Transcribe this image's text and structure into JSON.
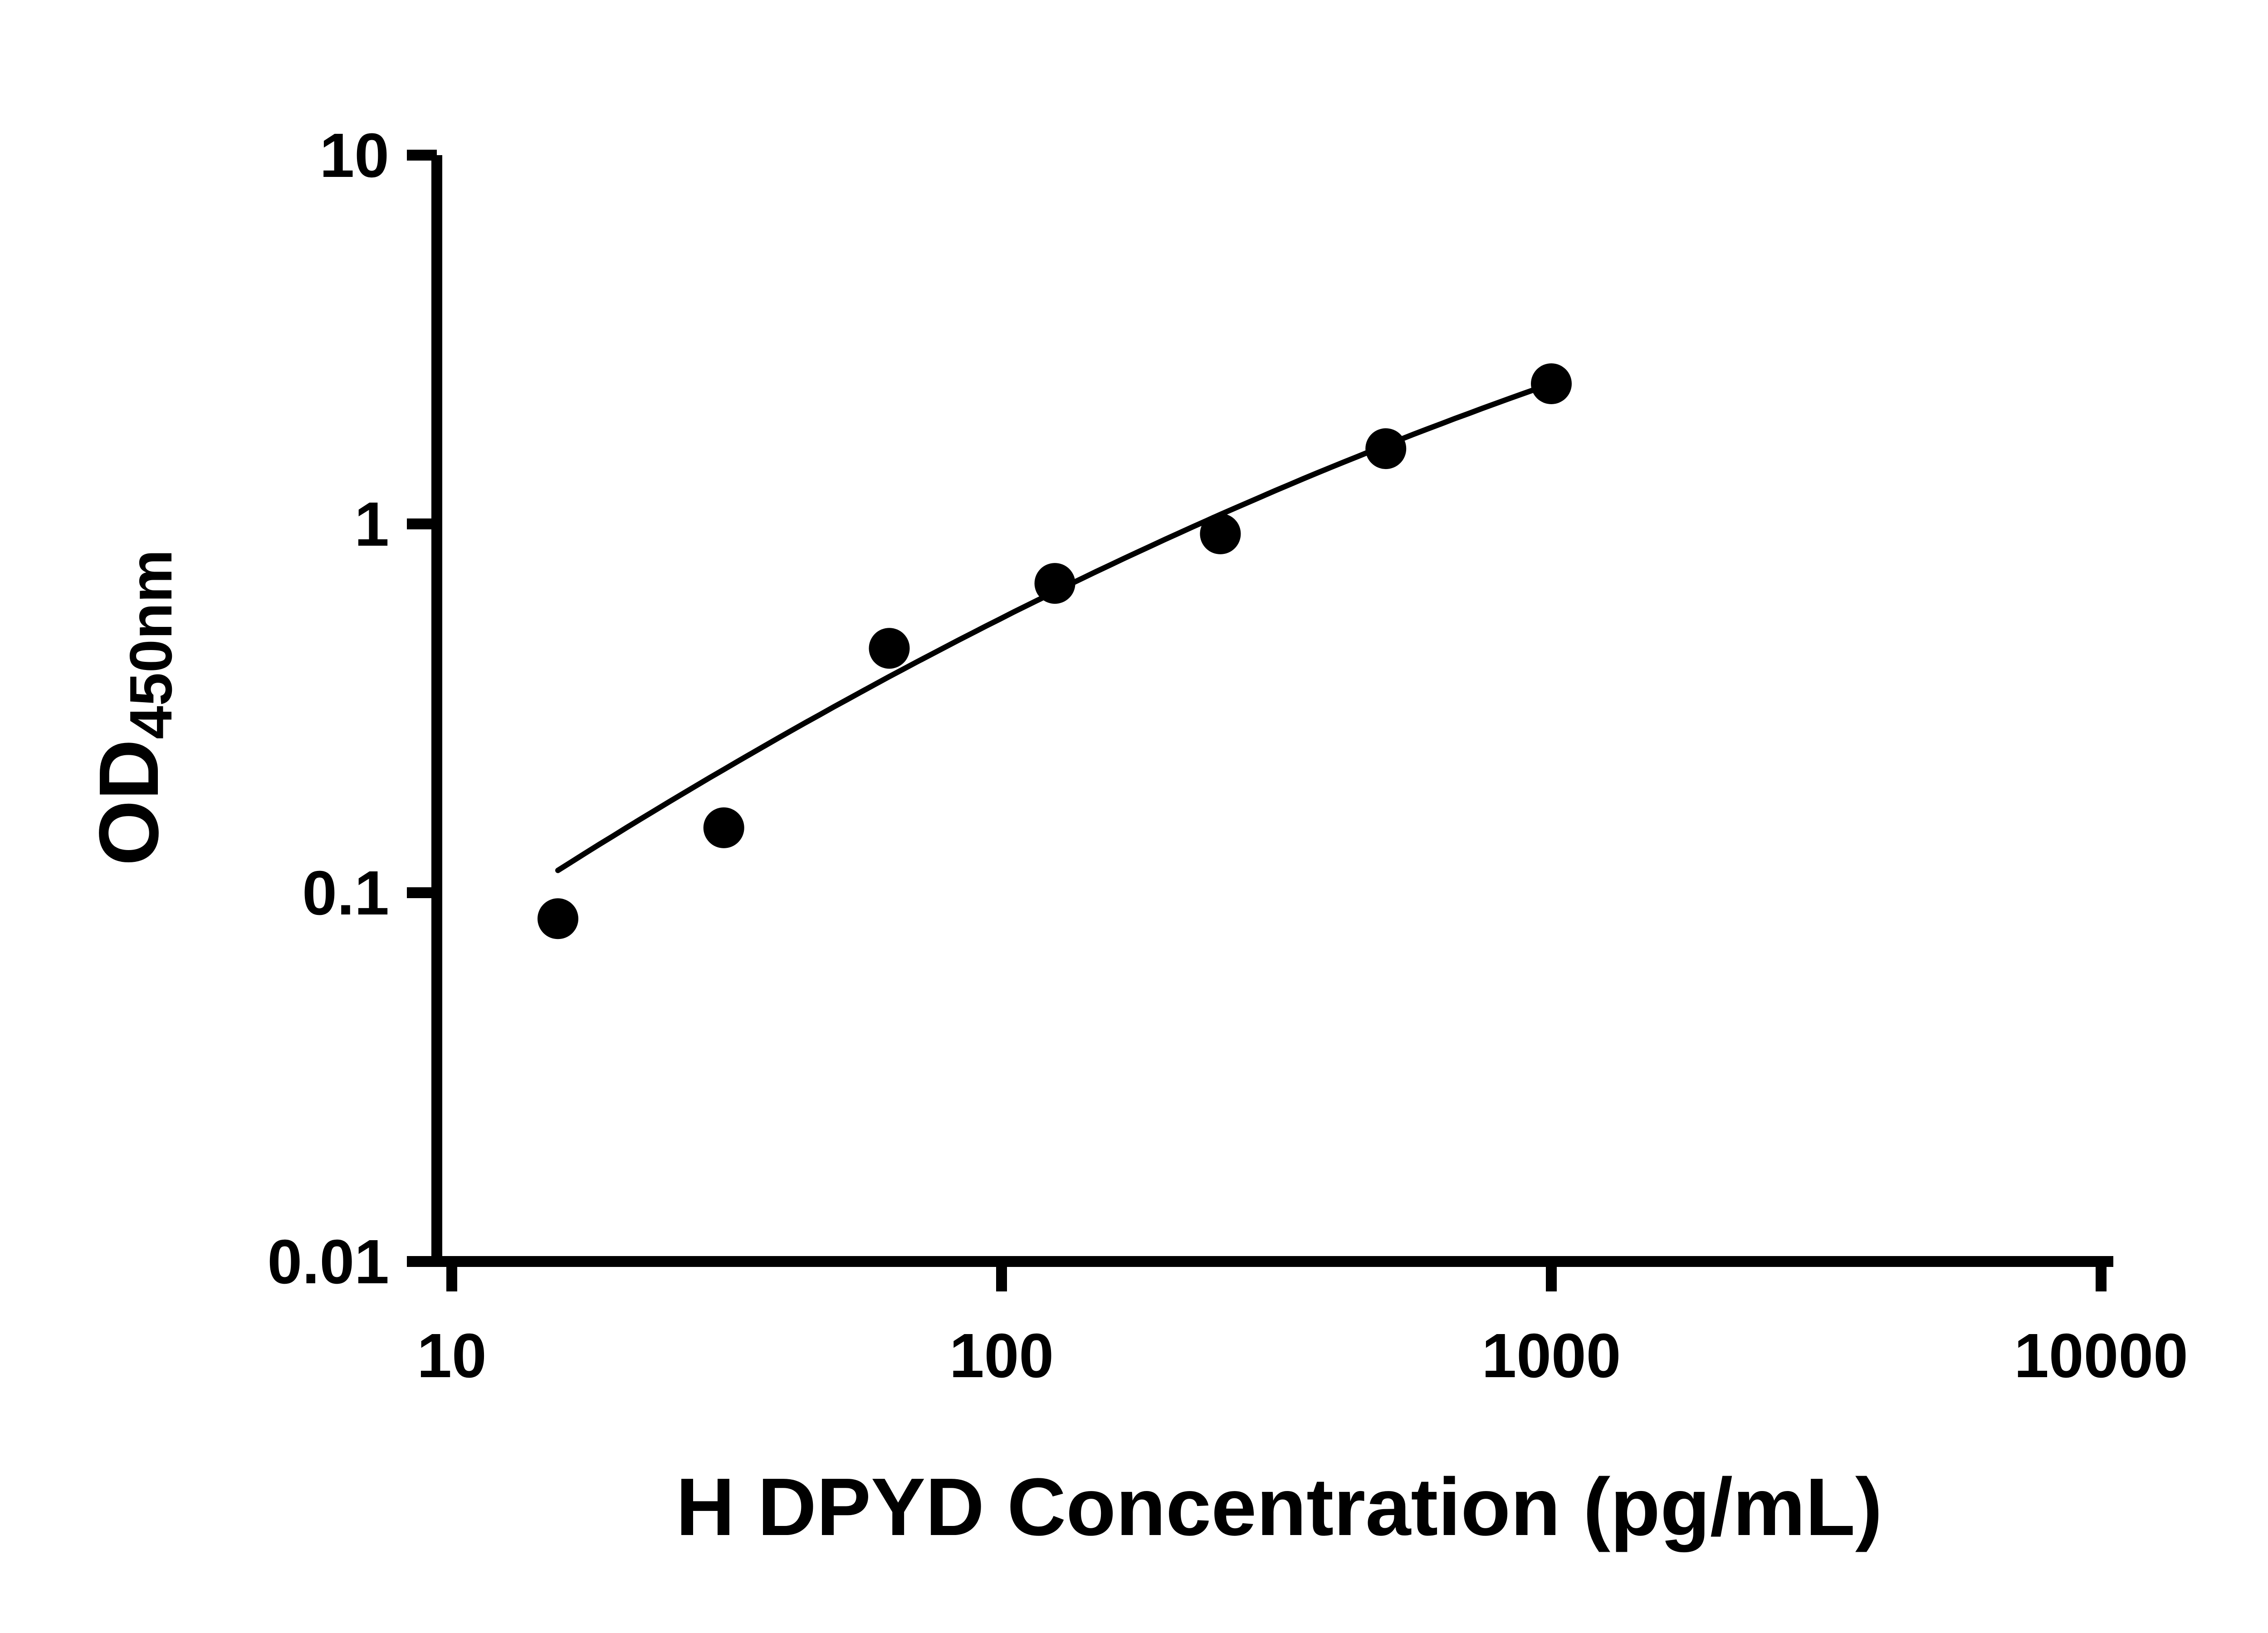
{
  "page": {
    "background": "#ffffff",
    "ink_color": "#000000"
  },
  "chart_data": {
    "type": "scatter",
    "xlabel": "H DPYD Concentration (pg/mL)",
    "ylabel": "OD",
    "ylabel_subscript": "450nm",
    "x_scale": "log",
    "y_scale": "log",
    "xlim": [
      10,
      10000
    ],
    "ylim": [
      0.01,
      10
    ],
    "x_ticks": [
      10,
      100,
      1000,
      10000
    ],
    "x_tick_labels": [
      "10",
      "100",
      "1000",
      "10000"
    ],
    "y_ticks": [
      10,
      1,
      0.1,
      0.01
    ],
    "y_tick_labels": [
      "10",
      "1",
      "0.1",
      "0.01"
    ],
    "grid": false,
    "legend": false,
    "series": [
      {
        "name": "standard-curve-points",
        "marker": "circle",
        "color": "#000000",
        "x": [
          15.6,
          31.25,
          62.5,
          125,
          250,
          500,
          1000
        ],
        "y": [
          0.085,
          0.15,
          0.46,
          0.69,
          0.94,
          1.6,
          2.4
        ]
      }
    ],
    "fit_curve": {
      "type": "quadratic-loglog",
      "color": "#000000",
      "anchors_x": [
        15.6,
        125,
        1000
      ],
      "anchors_y": [
        0.115,
        0.655,
        2.4
      ],
      "x_range": [
        15.6,
        1000
      ]
    }
  }
}
